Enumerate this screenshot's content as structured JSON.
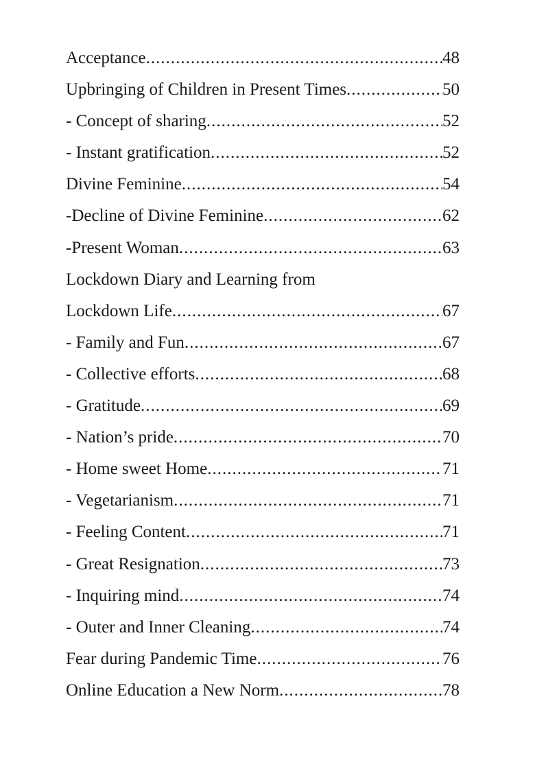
{
  "toc": [
    {
      "title": "Acceptance",
      "page": "48"
    },
    {
      "title": "Upbringing of Children in Present Times",
      "page": "50"
    },
    {
      "title": "- Concept of sharing",
      "page": "52"
    },
    {
      "title": "- Instant gratification",
      "page": "52"
    },
    {
      "title": "Divine Feminine",
      "page": "54"
    },
    {
      "title": "-Decline of Divine Feminine",
      "page": "62"
    },
    {
      "title": "-Present Woman",
      "page": "63"
    },
    {
      "title": "Lockdown Diary and Learning from",
      "page": ""
    },
    {
      "title": "Lockdown Life",
      "page": "67"
    },
    {
      "title": "- Family and Fun",
      "page": "67"
    },
    {
      "title": "- Collective efforts",
      "page": "68"
    },
    {
      "title": "- Gratitude",
      "page": "69"
    },
    {
      "title": "- Nation’s pride",
      "page": "70"
    },
    {
      "title": "- Home sweet Home",
      "page": "71"
    },
    {
      "title": "- Vegetarianism ",
      "page": "71"
    },
    {
      "title": "- Feeling Content",
      "page": "71"
    },
    {
      "title": "- Great Resignation",
      "page": "73"
    },
    {
      "title": "- Inquiring mind",
      "page": "74"
    },
    {
      "title": "- Outer and Inner Cleaning",
      "page": "74"
    },
    {
      "title": "Fear during Pandemic Time",
      "page": "76"
    },
    {
      "title": "Online Education a New Norm",
      "page": "78"
    }
  ]
}
